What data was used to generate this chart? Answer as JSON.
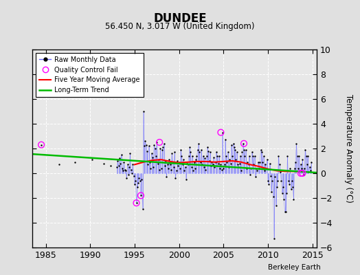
{
  "title": "DUNDEE",
  "subtitle": "56.450 N, 3.017 W (United Kingdom)",
  "ylabel": "Temperature Anomaly (°C)",
  "credit": "Berkeley Earth",
  "xlim": [
    1983.5,
    2015.5
  ],
  "ylim": [
    -6,
    10
  ],
  "yticks": [
    -6,
    -4,
    -2,
    0,
    2,
    4,
    6,
    8,
    10
  ],
  "xticks": [
    1985,
    1990,
    1995,
    2000,
    2005,
    2010,
    2015
  ],
  "bg_color": "#e0e0e0",
  "plot_bg_color": "#e8e8e8",
  "raw_color": "#6666ff",
  "raw_marker_color": "#000000",
  "qc_color": "#ff00ff",
  "ma_color": "#ff0000",
  "trend_color": "#00bb00",
  "grid_color": "#ffffff",
  "sparse_x": [
    1984.5,
    1986.5,
    1988.3,
    1990.2,
    1991.5,
    1992.3
  ],
  "sparse_y": [
    2.3,
    0.7,
    0.9,
    1.1,
    0.8,
    0.6
  ],
  "raw_data_x": [
    1993.0,
    1993.1,
    1993.2,
    1993.3,
    1993.4,
    1993.5,
    1993.6,
    1993.7,
    1993.8,
    1993.9,
    1994.0,
    1994.1,
    1994.2,
    1994.3,
    1994.4,
    1994.5,
    1994.6,
    1994.7,
    1994.8,
    1994.9,
    1995.0,
    1995.1,
    1995.2,
    1995.3,
    1995.4,
    1995.5,
    1995.6,
    1995.7,
    1995.8,
    1995.9,
    1996.0,
    1996.1,
    1996.2,
    1996.3,
    1996.4,
    1996.5,
    1996.6,
    1996.7,
    1996.8,
    1996.9,
    1997.0,
    1997.1,
    1997.2,
    1997.3,
    1997.4,
    1997.5,
    1997.6,
    1997.7,
    1997.8,
    1997.9,
    1998.0,
    1998.1,
    1998.2,
    1998.3,
    1998.4,
    1998.5,
    1998.6,
    1998.7,
    1998.8,
    1998.9,
    1999.0,
    1999.1,
    1999.2,
    1999.3,
    1999.4,
    1999.5,
    1999.6,
    1999.7,
    1999.8,
    1999.9,
    2000.0,
    2000.1,
    2000.2,
    2000.3,
    2000.4,
    2000.5,
    2000.6,
    2000.7,
    2000.8,
    2000.9,
    2001.0,
    2001.1,
    2001.2,
    2001.3,
    2001.4,
    2001.5,
    2001.6,
    2001.7,
    2001.8,
    2001.9,
    2002.0,
    2002.1,
    2002.2,
    2002.3,
    2002.4,
    2002.5,
    2002.6,
    2002.7,
    2002.8,
    2002.9,
    2003.0,
    2003.1,
    2003.2,
    2003.3,
    2003.4,
    2003.5,
    2003.6,
    2003.7,
    2003.8,
    2003.9,
    2004.0,
    2004.1,
    2004.2,
    2004.3,
    2004.4,
    2004.5,
    2004.6,
    2004.7,
    2004.8,
    2004.9,
    2005.0,
    2005.1,
    2005.2,
    2005.3,
    2005.4,
    2005.5,
    2005.6,
    2005.7,
    2005.8,
    2005.9,
    2006.0,
    2006.1,
    2006.2,
    2006.3,
    2006.4,
    2006.5,
    2006.6,
    2006.7,
    2006.8,
    2006.9,
    2007.0,
    2007.1,
    2007.2,
    2007.3,
    2007.4,
    2007.5,
    2007.6,
    2007.7,
    2007.8,
    2007.9,
    2008.0,
    2008.1,
    2008.2,
    2008.3,
    2008.4,
    2008.5,
    2008.6,
    2008.7,
    2008.8,
    2008.9,
    2009.0,
    2009.1,
    2009.2,
    2009.3,
    2009.4,
    2009.5,
    2009.6,
    2009.7,
    2009.8,
    2009.9,
    2010.0,
    2010.1,
    2010.2,
    2010.3,
    2010.4,
    2010.5,
    2010.6,
    2010.7,
    2010.8,
    2010.9,
    2011.0,
    2011.1,
    2011.2,
    2011.3,
    2011.4,
    2011.5,
    2011.6,
    2011.7,
    2011.8,
    2011.9,
    2012.0,
    2012.1,
    2012.2,
    2012.3,
    2012.4,
    2012.5,
    2012.6,
    2012.7,
    2012.8,
    2012.9,
    2013.0,
    2013.1,
    2013.2,
    2013.3,
    2013.4,
    2013.5,
    2013.6,
    2013.7,
    2013.8,
    2013.9,
    2014.0,
    2014.1,
    2014.2,
    2014.3,
    2014.4,
    2014.5,
    2014.6,
    2014.7,
    2014.8,
    2014.9
  ],
  "raw_data_y": [
    0.5,
    1.0,
    0.6,
    1.2,
    0.8,
    1.5,
    0.4,
    0.2,
    0.9,
    0.3,
    0.2,
    -0.4,
    0.7,
    -0.1,
    0.5,
    1.6,
    0.3,
    0.0,
    0.7,
    -0.2,
    -0.9,
    -0.6,
    -2.4,
    -1.1,
    -0.8,
    -0.4,
    -0.6,
    -1.8,
    -0.5,
    -2.9,
    5.0,
    2.2,
    2.6,
    2.3,
    1.8,
    0.7,
    2.2,
    0.9,
    0.4,
    1.6,
    1.3,
    0.5,
    2.3,
    2.0,
    1.4,
    2.5,
    0.8,
    1.1,
    0.3,
    2.0,
    0.4,
    1.9,
    2.1,
    2.4,
    0.6,
    1.0,
    -0.3,
    0.7,
    0.4,
    1.1,
    0.7,
    0.3,
    1.6,
    0.9,
    0.5,
    1.7,
    -0.4,
    0.2,
    1.0,
    0.6,
    0.9,
    0.4,
    1.9,
    1.4,
    0.7,
    1.1,
    0.2,
    0.5,
    -0.5,
    0.8,
    0.7,
    1.4,
    2.1,
    1.7,
    0.5,
    1.4,
    0.2,
    0.9,
    0.4,
    1.1,
    1.4,
    1.9,
    2.4,
    1.7,
    0.9,
    1.9,
    0.7,
    1.4,
    0.5,
    1.2,
    0.3,
    1.4,
    2.1,
    1.8,
    1.0,
    1.7,
    0.6,
    0.9,
    0.7,
    1.3,
    0.5,
    0.9,
    1.7,
    1.4,
    0.8,
    1.4,
    0.4,
    0.7,
    0.3,
    3.3,
    0.4,
    0.7,
    2.7,
    1.4,
    0.9,
    1.7,
    0.5,
    1.1,
    0.8,
    2.3,
    1.4,
    2.4,
    2.1,
    1.9,
    1.1,
    1.7,
    0.7,
    0.5,
    0.8,
    1.4,
    0.2,
    1.7,
    2.4,
    1.9,
    1.4,
    1.9,
    0.4,
    0.9,
    0.7,
    1.4,
    -0.1,
    0.4,
    1.7,
    1.4,
    0.7,
    1.4,
    -0.3,
    0.4,
    0.2,
    0.9,
    0.4,
    0.9,
    1.9,
    1.7,
    0.9,
    1.4,
    0.2,
    0.7,
    0.4,
    1.1,
    -0.6,
    -0.9,
    0.8,
    -0.2,
    -1.5,
    -0.6,
    -1.9,
    -5.3,
    -0.3,
    -2.6,
    -1.1,
    -0.6,
    1.4,
    0.7,
    0.1,
    -0.6,
    -1.6,
    -1.1,
    -2.1,
    -3.1,
    -3.1,
    -1.6,
    1.4,
    -0.6,
    -0.9,
    0.4,
    -1.3,
    -0.6,
    -1.1,
    -2.1,
    0.4,
    0.9,
    2.4,
    1.4,
    0.4,
    1.4,
    0.2,
    0.7,
    0.4,
    1.1,
    -0.1,
    0.4,
    1.9,
    1.4,
    0.7,
    1.4,
    0.1,
    0.5,
    0.2,
    0.9
  ],
  "qc_fail_x": [
    1984.5,
    1995.2,
    1995.7,
    1997.8,
    2004.7,
    2007.3,
    2013.7,
    2013.9
  ],
  "qc_fail_y": [
    2.3,
    -2.4,
    -1.8,
    2.5,
    3.3,
    2.4,
    0.0,
    0.0
  ],
  "moving_avg_x": [
    1995.0,
    1996.0,
    1997.0,
    1998.0,
    1999.0,
    2000.0,
    2001.0,
    2002.0,
    2003.0,
    2004.0,
    2005.0,
    2006.0,
    2007.0,
    2008.0,
    2009.0,
    2010.0,
    2011.0,
    2012.0,
    2013.0,
    2014.0
  ],
  "moving_avg_y": [
    0.7,
    0.9,
    1.05,
    1.1,
    0.95,
    0.85,
    0.9,
    0.95,
    0.95,
    0.9,
    0.95,
    1.0,
    0.9,
    0.7,
    0.55,
    0.35,
    0.2,
    0.15,
    0.15,
    0.15
  ],
  "trend_x": [
    1983.5,
    2015.5
  ],
  "trend_y": [
    1.55,
    0.05
  ]
}
